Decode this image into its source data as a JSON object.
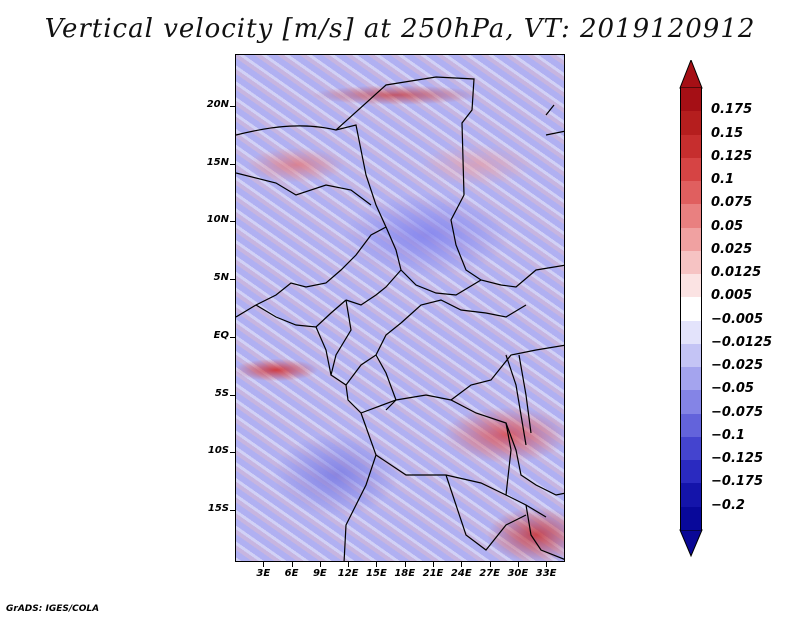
{
  "title": "Vertical velocity [m/s] at 250hPa, VT: 2019120912",
  "credit": "GrADS: IGES/COLA",
  "map": {
    "lat_labels": [
      "20N",
      "15N",
      "10N",
      "5N",
      "EQ",
      "5S",
      "10S",
      "15S"
    ],
    "lat_values": [
      20,
      15,
      10,
      5,
      0,
      -5,
      -10,
      -15
    ],
    "lat_range": [
      -19.5,
      24.5
    ],
    "lon_labels": [
      "3E",
      "6E",
      "9E",
      "12E",
      "15E",
      "18E",
      "21E",
      "24E",
      "27E",
      "30E",
      "33E"
    ],
    "lon_values": [
      3,
      6,
      9,
      12,
      15,
      18,
      21,
      24,
      27,
      30,
      33
    ],
    "lon_range": [
      0,
      35
    ]
  },
  "colorbar": {
    "labels": [
      "0.175",
      "0.15",
      "0.125",
      "0.1",
      "0.075",
      "0.05",
      "0.025",
      "0.0125",
      "0.005",
      "−0.005",
      "−0.0125",
      "−0.025",
      "−0.05",
      "−0.075",
      "−0.1",
      "−0.125",
      "−0.175",
      "−0.2"
    ],
    "colors": [
      "#a50f15",
      "#b51e1e",
      "#c62e2e",
      "#d64444",
      "#e05f5f",
      "#e98080",
      "#f0a1a1",
      "#f6c3c3",
      "#fbe3e3",
      "#ffffff",
      "#e3e3fb",
      "#c4c4f5",
      "#a4a4ee",
      "#8484e6",
      "#6363db",
      "#4444cf",
      "#2a2ac0",
      "#1414aa",
      "#08089a"
    ],
    "top_arrow_color": "#a50f15",
    "bottom_arrow_color": "#0a0896"
  }
}
